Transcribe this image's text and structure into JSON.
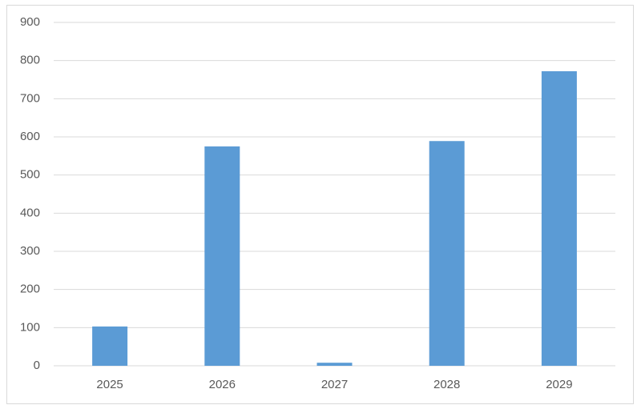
{
  "chart_data": {
    "type": "bar",
    "categories": [
      "2025",
      "2026",
      "2027",
      "2028",
      "2029"
    ],
    "values": [
      103,
      575,
      8,
      589,
      772
    ],
    "color": "#5b9bd5",
    "ylim": [
      0,
      900
    ],
    "yticks": [
      0,
      100,
      200,
      300,
      400,
      500,
      600,
      700,
      800,
      900
    ],
    "grid": true
  }
}
